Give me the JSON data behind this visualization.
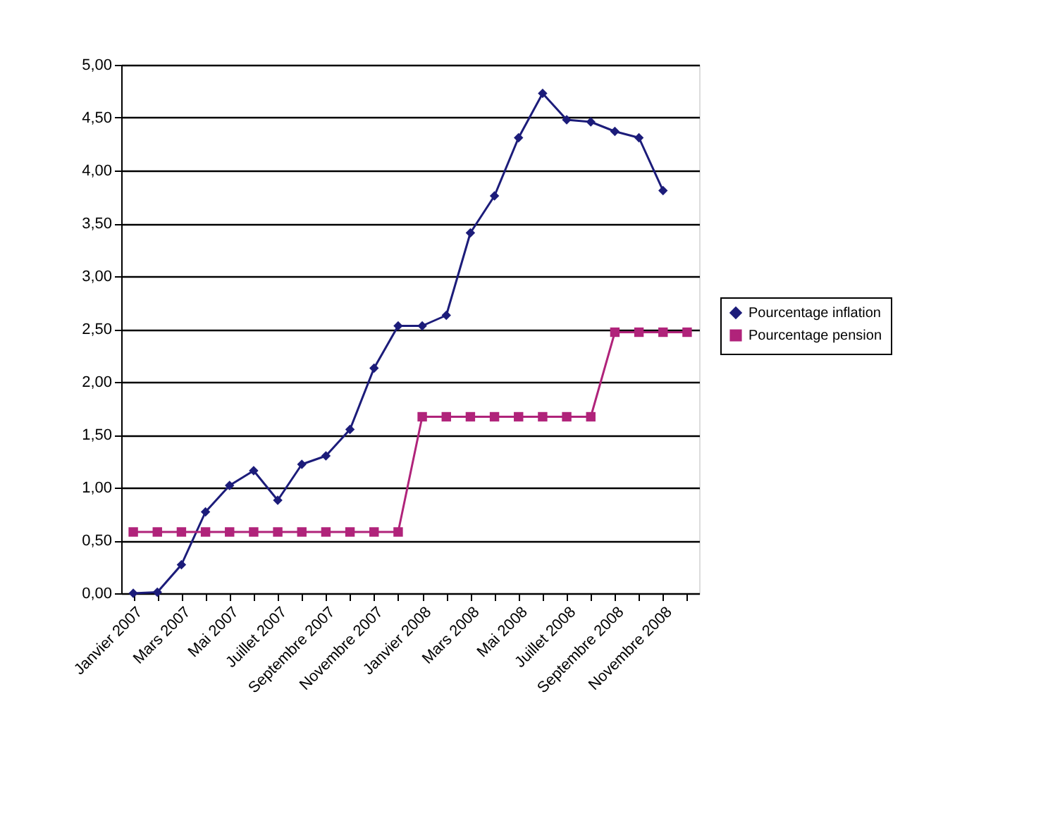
{
  "chart_data": {
    "type": "line",
    "categories": [
      "Janvier 2007",
      null,
      "Mars 2007",
      null,
      "Mai 2007",
      null,
      "Juillet 2007",
      null,
      "Septembre 2007",
      null,
      "Novembre 2007",
      null,
      "Janvier 2008",
      null,
      "Mars 2008",
      null,
      "Mai 2008",
      null,
      "Juillet 2008",
      null,
      "Septembre 2008",
      null,
      "Novembre 2008",
      null
    ],
    "series": [
      {
        "name": "Pourcentage inflation",
        "color": "#1c1c7a",
        "marker": "diamond",
        "values": [
          0.0,
          0.01,
          0.27,
          0.77,
          1.02,
          1.16,
          0.88,
          1.22,
          1.3,
          1.55,
          2.13,
          2.53,
          2.53,
          2.63,
          3.41,
          3.76,
          4.31,
          4.73,
          4.48,
          4.46,
          4.37,
          4.31,
          3.81,
          null
        ]
      },
      {
        "name": "Pourcentage pension",
        "color": "#b0237a",
        "marker": "square",
        "values": [
          0.58,
          0.58,
          0.58,
          0.58,
          0.58,
          0.58,
          0.58,
          0.58,
          0.58,
          0.58,
          0.58,
          0.58,
          1.67,
          1.67,
          1.67,
          1.67,
          1.67,
          1.67,
          1.67,
          1.67,
          2.47,
          2.47,
          2.47,
          2.47
        ]
      }
    ],
    "ylim": [
      0,
      5
    ],
    "yticks": [
      {
        "value": 0,
        "label": "0,00"
      },
      {
        "value": 0.5,
        "label": "0,50"
      },
      {
        "value": 1,
        "label": "1,00"
      },
      {
        "value": 1.5,
        "label": "1,50"
      },
      {
        "value": 2,
        "label": "2,00"
      },
      {
        "value": 2.5,
        "label": "2,50"
      },
      {
        "value": 3,
        "label": "3,00"
      },
      {
        "value": 3.5,
        "label": "3,50"
      },
      {
        "value": 4,
        "label": "4,00"
      },
      {
        "value": 4.5,
        "label": "4,50"
      },
      {
        "value": 5,
        "label": "5,00"
      }
    ],
    "grid": "y",
    "legend": "right",
    "line_style": "solid"
  }
}
